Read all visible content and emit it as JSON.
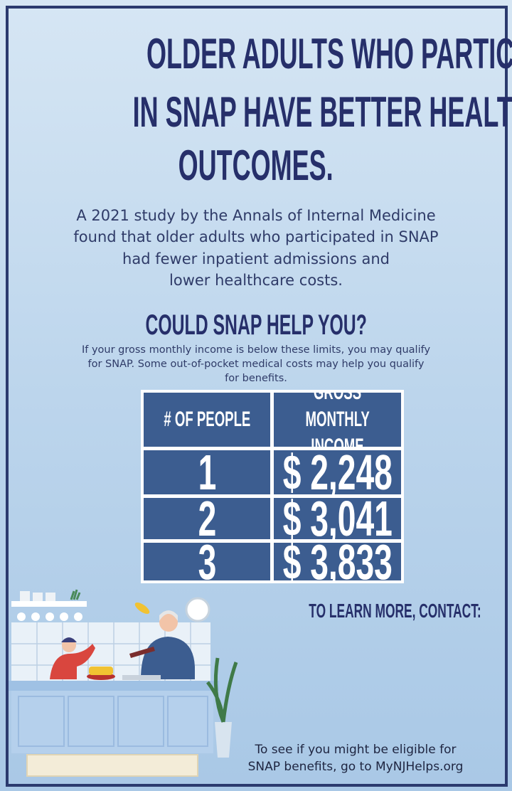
{
  "title": {
    "lines": [
      "OLDER ADULTS WHO PARTICIPATE",
      "IN SNAP HAVE BETTER HEALTH",
      "OUTCOMES."
    ]
  },
  "body": {
    "lines": [
      "A 2021 study by the Annals of Internal Medicine",
      "found that older adults who participated in SNAP",
      "had fewer inpatient admissions and",
      "lower healthcare costs."
    ]
  },
  "question": "COULD SNAP HELP YOU?",
  "note": {
    "lines": [
      "If your gross monthly income is below these limits, you may qualify",
      "for SNAP.  Some out-of-pocket medical costs may help you qualify",
      "for benefits."
    ]
  },
  "table": {
    "headers": [
      "# OF PEOPLE",
      "GROSS MONTHLY INCOME"
    ],
    "rows": [
      [
        "1",
        "$ 2,248"
      ],
      [
        "2",
        "$ 3,041"
      ],
      [
        "3",
        "$ 3,833"
      ]
    ]
  },
  "contact": "TO LEARN MORE, CONTACT:",
  "footer": {
    "lines": [
      "To see if you might be eligible for",
      "SNAP benefits, go to MyNJHelps.org"
    ]
  }
}
